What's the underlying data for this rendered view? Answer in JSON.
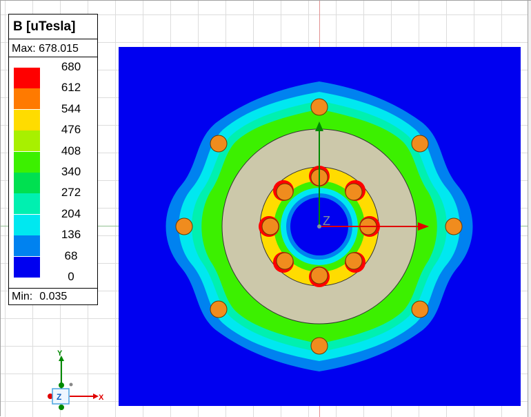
{
  "legend": {
    "title": "B [uTesla]",
    "max_label": "Max: 678.015",
    "min_prefix": "Min:",
    "min_value": "0.035",
    "ticks": [
      "680",
      "612",
      "544",
      "476",
      "408",
      "340",
      "272",
      "204",
      "136",
      "68",
      "0"
    ],
    "colors": [
      "#ff0000",
      "#ff7a00",
      "#ffdc00",
      "#a8f000",
      "#3cf000",
      "#00e050",
      "#00f0b0",
      "#00e8f0",
      "#0082f0",
      "#0000f0"
    ]
  },
  "triad": {
    "x_label": "X",
    "y_label": "Y",
    "z_label": "Z"
  },
  "plot": {
    "field": "B",
    "unit": "uTesla",
    "center_label": "Z",
    "colors": {
      "background": "#0000f0",
      "disk": "#ccc8aa",
      "conductor": "#f08c1e",
      "x_axis": "#e00000",
      "y_axis": "#008a00"
    }
  }
}
